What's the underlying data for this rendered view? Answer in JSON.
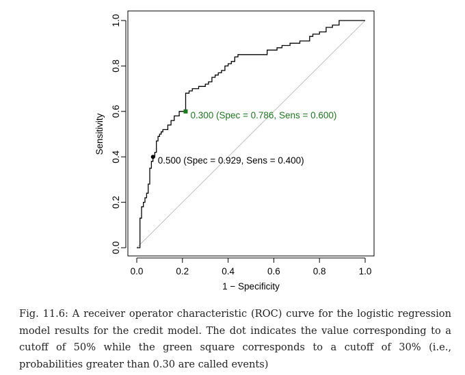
{
  "chart_data": {
    "type": "line",
    "xlabel": "1 − Specificity",
    "ylabel": "Sensitivity",
    "xlim": [
      0,
      1
    ],
    "ylim": [
      0,
      1
    ],
    "xticks": [
      "0.0",
      "0.2",
      "0.4",
      "0.6",
      "0.8",
      "1.0"
    ],
    "yticks": [
      "0.0",
      "0.2",
      "0.4",
      "0.6",
      "0.8",
      "1.0"
    ],
    "grid": false,
    "series": [
      {
        "color": "#000000",
        "x": [
          0,
          0.014,
          0.014,
          0.021,
          0.021,
          0.029,
          0.029,
          0.036,
          0.036,
          0.043,
          0.043,
          0.05,
          0.05,
          0.057,
          0.057,
          0.064,
          0.064,
          0.071,
          0.071,
          0.079,
          0.079,
          0.086,
          0.086,
          0.093,
          0.093,
          0.1,
          0.1,
          0.107,
          0.107,
          0.114,
          0.114,
          0.136,
          0.136,
          0.15,
          0.15,
          0.164,
          0.164,
          0.186,
          0.186,
          0.214,
          0.214,
          0.229,
          0.229,
          0.243,
          0.243,
          0.271,
          0.271,
          0.3,
          0.3,
          0.314,
          0.314,
          0.329,
          0.329,
          0.343,
          0.343,
          0.357,
          0.357,
          0.371,
          0.371,
          0.386,
          0.386,
          0.4,
          0.4,
          0.414,
          0.414,
          0.429,
          0.429,
          0.443,
          0.443,
          0.571,
          0.571,
          0.614,
          0.614,
          0.636,
          0.636,
          0.671,
          0.671,
          0.714,
          0.714,
          0.757,
          0.757,
          0.771,
          0.771,
          0.8,
          0.8,
          0.829,
          0.829,
          0.857,
          0.857,
          0.886,
          0.886,
          1.0
        ],
        "y": [
          0,
          0,
          0.13,
          0.13,
          0.18,
          0.18,
          0.2,
          0.2,
          0.22,
          0.22,
          0.24,
          0.24,
          0.28,
          0.28,
          0.35,
          0.35,
          0.38,
          0.38,
          0.4,
          0.4,
          0.42,
          0.42,
          0.47,
          0.47,
          0.49,
          0.49,
          0.5,
          0.5,
          0.51,
          0.51,
          0.52,
          0.52,
          0.54,
          0.54,
          0.56,
          0.56,
          0.58,
          0.58,
          0.6,
          0.6,
          0.68,
          0.68,
          0.69,
          0.69,
          0.7,
          0.7,
          0.71,
          0.71,
          0.72,
          0.72,
          0.73,
          0.73,
          0.75,
          0.75,
          0.76,
          0.76,
          0.77,
          0.77,
          0.78,
          0.78,
          0.8,
          0.8,
          0.81,
          0.81,
          0.82,
          0.82,
          0.84,
          0.84,
          0.85,
          0.85,
          0.87,
          0.87,
          0.88,
          0.88,
          0.89,
          0.89,
          0.9,
          0.9,
          0.91,
          0.91,
          0.93,
          0.93,
          0.94,
          0.94,
          0.95,
          0.95,
          0.97,
          0.97,
          0.98,
          0.98,
          1.0,
          1.0
        ]
      }
    ],
    "reference_line": {
      "x": [
        0,
        1
      ],
      "y": [
        0,
        1
      ],
      "color": "#c0c0c0"
    },
    "annotations": [
      {
        "marker": "dot",
        "x": 0.071,
        "y": 0.4,
        "color": "#000000",
        "text": "0.500 (Spec = 0.929, Sens = 0.400)"
      },
      {
        "marker": "square",
        "x": 0.214,
        "y": 0.6,
        "color": "#1a7a1a",
        "text": "0.300 (Spec = 0.786, Sens = 0.600)"
      }
    ]
  },
  "caption": "Fig. 11.6: A receiver operator characteristic (ROC) curve for the logistic regression model results for the credit model. The dot indicates the value corresponding to a cutoff of 50% while the green square corresponds to a cutoff of 30% (i.e., probabilities greater than 0.30 are called events)"
}
